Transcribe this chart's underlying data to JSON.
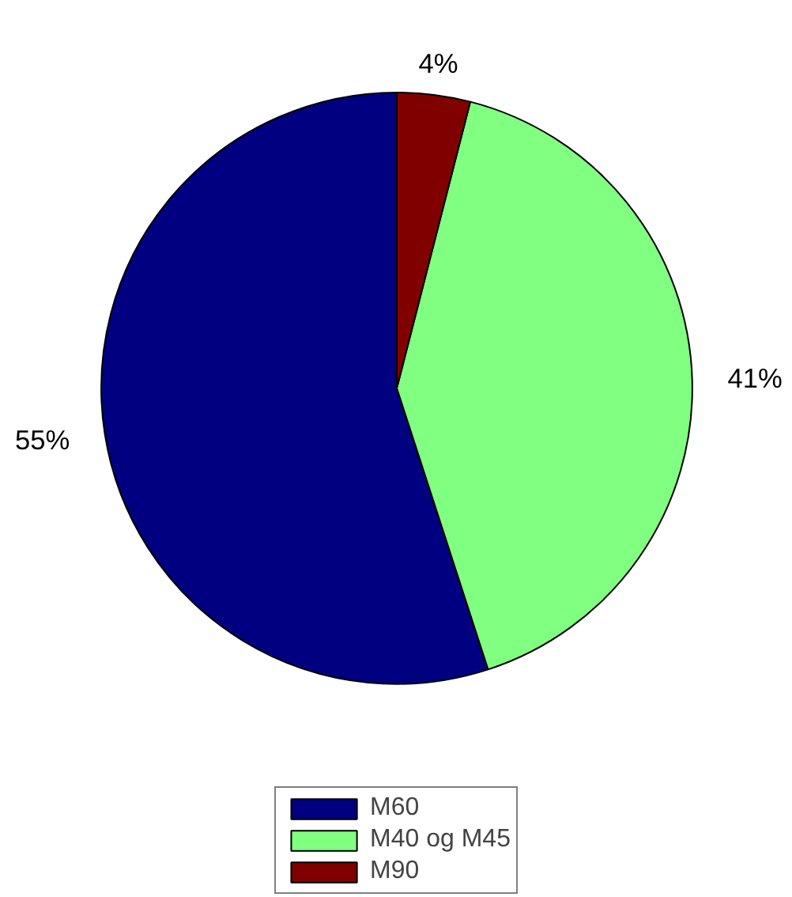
{
  "chart_data": {
    "type": "pie",
    "categories": [
      "M60",
      "M40 og M45",
      "M90"
    ],
    "values": [
      55,
      41,
      4
    ],
    "colors": [
      "#000080",
      "#80ff80",
      "#800000"
    ],
    "value_labels": [
      "55%",
      "41%",
      "4%"
    ],
    "legend": "bottom"
  }
}
